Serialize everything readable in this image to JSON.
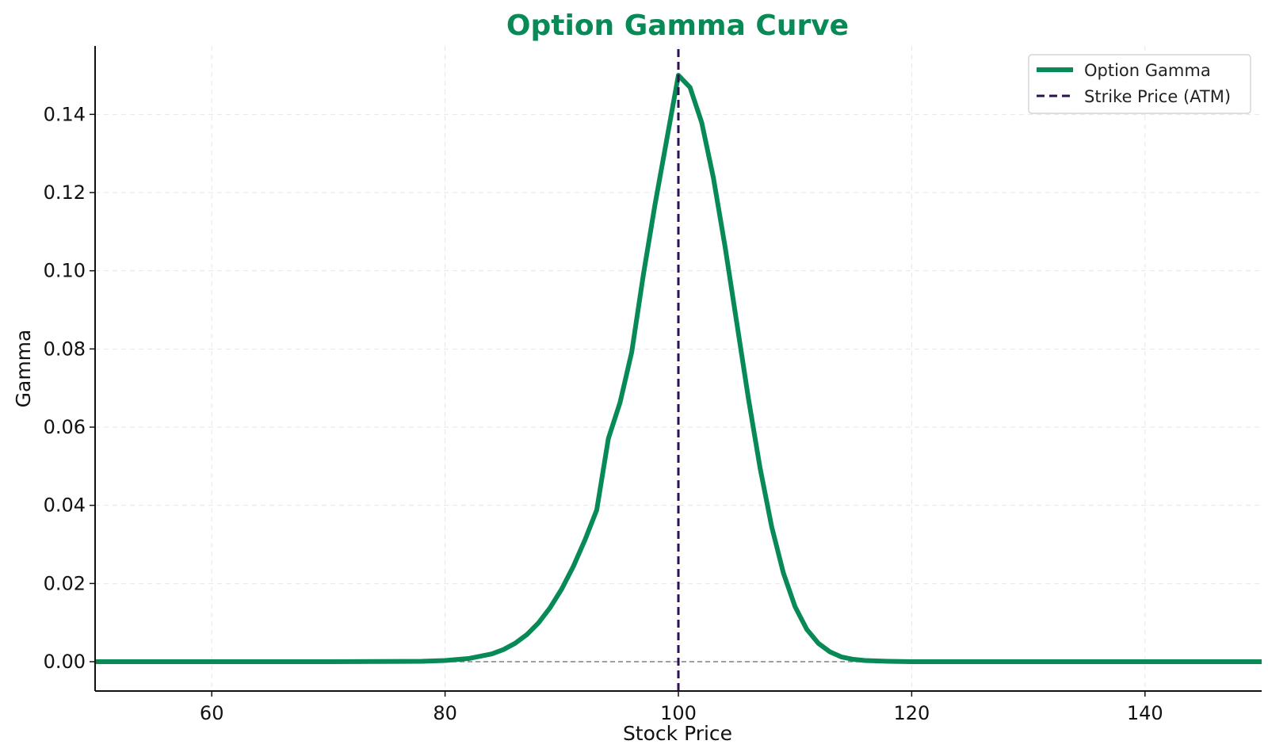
{
  "chart_data": {
    "type": "line",
    "title": "Option Gamma Curve",
    "xlabel": "Stock Price",
    "ylabel": "Gamma",
    "xlim": [
      50,
      150
    ],
    "ylim": [
      -0.0075,
      0.1575
    ],
    "xticks": [
      60,
      80,
      100,
      120,
      140
    ],
    "yticks": [
      0.0,
      0.02,
      0.04,
      0.06,
      0.08,
      0.1,
      0.12,
      0.14
    ],
    "grid": true,
    "legend_position": "top-right",
    "series": [
      {
        "name": "Option Gamma",
        "color": "#078a55",
        "style": "solid",
        "x": [
          50,
          60,
          70,
          78,
          80,
          82,
          84,
          85,
          86,
          87,
          88,
          89,
          90,
          91,
          92,
          93,
          94,
          95,
          96,
          97,
          98,
          99,
          100,
          101,
          102,
          103,
          104,
          105,
          106,
          107,
          108,
          109,
          110,
          111,
          112,
          113,
          114,
          115,
          116,
          118,
          120,
          122,
          130,
          140,
          150
        ],
        "y": [
          0.0,
          0.0,
          0.0,
          0.0001,
          0.0003,
          0.0008,
          0.002,
          0.0031,
          0.0047,
          0.0069,
          0.0099,
          0.0138,
          0.0186,
          0.0244,
          0.0312,
          0.0388,
          0.0571,
          0.0663,
          0.0792,
          0.099,
          0.117,
          0.1335,
          0.15,
          0.1469,
          0.1379,
          0.1238,
          0.1062,
          0.0868,
          0.0674,
          0.0496,
          0.0345,
          0.0227,
          0.0141,
          0.0083,
          0.0047,
          0.0025,
          0.0012,
          0.0006,
          0.0003,
          0.0001,
          0.0,
          0.0,
          0.0,
          0.0,
          0.0
        ]
      },
      {
        "name": "Strike Price (ATM)",
        "color": "#2b1250",
        "style": "dashed",
        "x": [
          100,
          100
        ],
        "y": [
          -0.0075,
          0.1575
        ]
      }
    ],
    "reference_lines": [
      {
        "orientation": "horizontal",
        "y": 0.0,
        "color": "#808080",
        "style": "dashed"
      }
    ]
  },
  "colors": {
    "title": "#078a55",
    "grid": "#e6e6e6",
    "axis": "#111111"
  }
}
